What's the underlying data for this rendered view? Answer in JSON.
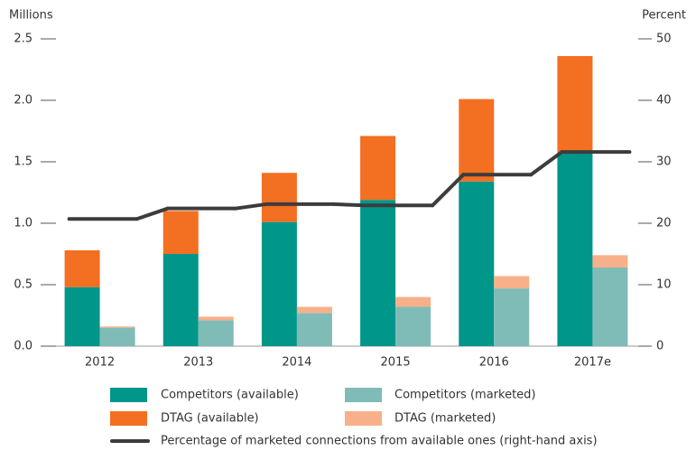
{
  "chart_data": {
    "type": "bar",
    "ylabel": "Millions",
    "y2label": "Percent",
    "categories": [
      "2012",
      "2013",
      "2014",
      "2015",
      "2016",
      "2017e"
    ],
    "series": [
      {
        "name": "Competitors (available)",
        "color": "#00968a",
        "stack": 0,
        "values": [
          0.48,
          0.75,
          1.01,
          1.19,
          1.34,
          1.57
        ]
      },
      {
        "name": "Competitors (marketed)",
        "color": "#7fbcb8",
        "stack": 1,
        "values": [
          0.15,
          0.21,
          0.27,
          0.32,
          0.47,
          0.64
        ]
      },
      {
        "name": "DTAG (available)",
        "color": "#f36f21",
        "stack": 0,
        "values": [
          0.3,
          0.35,
          0.4,
          0.52,
          0.67,
          0.79
        ]
      },
      {
        "name": "DTAG (marketed)",
        "color": "#f8b08a",
        "stack": 1,
        "values": [
          0.01,
          0.03,
          0.05,
          0.08,
          0.1,
          0.1
        ]
      },
      {
        "name": "Percentage of marketed connections from available ones (right-hand axis)",
        "color": "#3c3c3c",
        "type": "line",
        "axis": "y2",
        "values": [
          20.7,
          22.4,
          23.1,
          22.9,
          27.9,
          31.6
        ]
      }
    ],
    "ylim": [
      0,
      2.5
    ],
    "yticks": [
      {
        "value": 0,
        "label": "0.0"
      },
      0.5,
      {
        "value": 1,
        "label": "1.0"
      },
      1.5,
      {
        "value": 2,
        "label": "2.0"
      },
      2.5
    ],
    "y2lim": [
      0,
      50
    ],
    "y2ticks": [
      0,
      10,
      20,
      30,
      40,
      50
    ]
  }
}
